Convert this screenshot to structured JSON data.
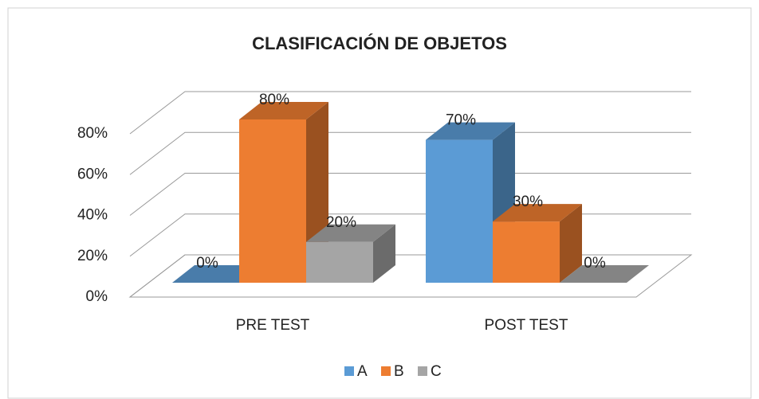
{
  "chart_data": {
    "type": "bar3d",
    "title": "CLASIFICACIÓN DE OBJETOS",
    "categories": [
      "PRE TEST",
      "POST TEST"
    ],
    "series": [
      {
        "name": "A",
        "color": "#5b9bd5",
        "values": [
          0,
          70
        ],
        "value_labels": [
          "0%",
          "70%"
        ]
      },
      {
        "name": "B",
        "color": "#ed7d31",
        "values": [
          80,
          30
        ],
        "value_labels": [
          "80%",
          "30%"
        ]
      },
      {
        "name": "C",
        "color": "#a5a5a5",
        "values": [
          20,
          0
        ],
        "value_labels": [
          "20%",
          "0%"
        ]
      }
    ],
    "ylim": [
      0,
      80
    ],
    "yticks": [
      {
        "value": 0,
        "label": "0%"
      },
      {
        "value": 20,
        "label": "20%"
      },
      {
        "value": 40,
        "label": "40%"
      },
      {
        "value": 60,
        "label": "60%"
      },
      {
        "value": 80,
        "label": "80%"
      }
    ],
    "grid": true,
    "legend": "bottom"
  }
}
